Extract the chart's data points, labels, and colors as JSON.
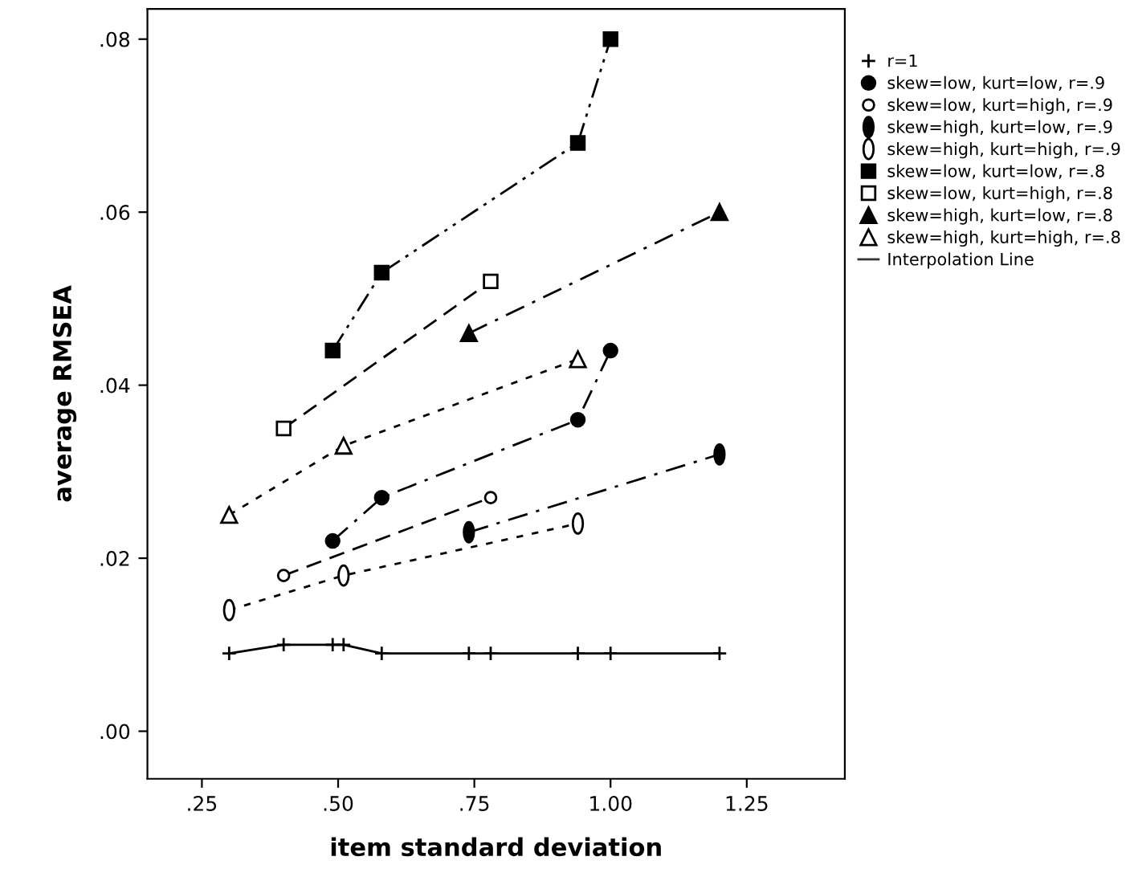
{
  "chart_data": {
    "type": "line",
    "xlabel": "item standard deviation",
    "ylabel": "average RMSEA",
    "xlim": [
      0.15,
      1.43
    ],
    "xticks": [
      {
        "value": 0.25,
        "label": ".25"
      },
      {
        "value": 0.5,
        "label": ".50"
      },
      {
        "value": 0.75,
        "label": ".75"
      },
      {
        "value": 1.0,
        "label": "1.00"
      },
      {
        "value": 1.25,
        "label": "1.25"
      }
    ],
    "ylim": [
      -0.0055,
      0.0835
    ],
    "yticks": [
      {
        "value": 0.0,
        "label": ".00"
      },
      {
        "value": 0.02,
        "label": ".02"
      },
      {
        "value": 0.04,
        "label": ".04"
      },
      {
        "value": 0.06,
        "label": ".06"
      },
      {
        "value": 0.08,
        "label": ".08"
      }
    ],
    "grid": false,
    "legend": "right",
    "annotations": [
      "Interpolation Line"
    ],
    "series": [
      {
        "name": "r=1",
        "color": "#000000",
        "marker": "cross",
        "line_style": "solid",
        "x": [
          0.3,
          0.4,
          0.49,
          0.51,
          0.58,
          0.74,
          0.78,
          0.94,
          1.0,
          1.2
        ],
        "values": [
          0.009,
          0.01,
          0.01,
          0.01,
          0.009,
          0.009,
          0.009,
          0.009,
          0.009,
          0.009
        ]
      },
      {
        "name": "skew=low, kurt=low, r=.9",
        "color": "#000000",
        "marker": "circle",
        "line_style": "dashdot",
        "x": [
          0.49,
          0.58,
          0.94,
          1.0
        ],
        "values": [
          0.022,
          0.027,
          0.036,
          0.044
        ]
      },
      {
        "name": "skew=low, kurt=high, r=.9",
        "color": "#000000",
        "marker": "circle_open",
        "line_style": "dashed",
        "x": [
          0.4,
          0.78
        ],
        "values": [
          0.018,
          0.027
        ]
      },
      {
        "name": "skew=high, kurt=low, r=.9",
        "color": "#000000",
        "marker": "circle_tall",
        "line_style": "dashdot",
        "x": [
          0.74,
          1.2
        ],
        "values": [
          0.023,
          0.032
        ]
      },
      {
        "name": "skew=high, kurt=high, r=.9",
        "color": "#000000",
        "marker": "circle_tall_open",
        "line_style": "dotted",
        "x": [
          0.3,
          0.51,
          0.94
        ],
        "values": [
          0.014,
          0.018,
          0.024
        ]
      },
      {
        "name": "skew=low, kurt=low, r=.8",
        "color": "#000000",
        "marker": "square",
        "line_style": "dashdotdot",
        "x": [
          0.49,
          0.58,
          0.94,
          1.0
        ],
        "values": [
          0.044,
          0.053,
          0.068,
          0.08
        ]
      },
      {
        "name": "skew=low, kurt=high, r=.8",
        "color": "#000000",
        "marker": "square_open",
        "line_style": "dashed",
        "x": [
          0.4,
          0.78
        ],
        "values": [
          0.035,
          0.052
        ]
      },
      {
        "name": "skew=high, kurt=low, r=.8",
        "color": "#000000",
        "marker": "triangle",
        "line_style": "dashdot",
        "x": [
          0.74,
          1.2
        ],
        "values": [
          0.046,
          0.06
        ]
      },
      {
        "name": "skew=high, kurt=high, r=.8",
        "color": "#000000",
        "marker": "triangle_open",
        "line_style": "dotted",
        "x": [
          0.3,
          0.51,
          0.94
        ],
        "values": [
          0.025,
          0.033,
          0.043
        ]
      }
    ]
  }
}
